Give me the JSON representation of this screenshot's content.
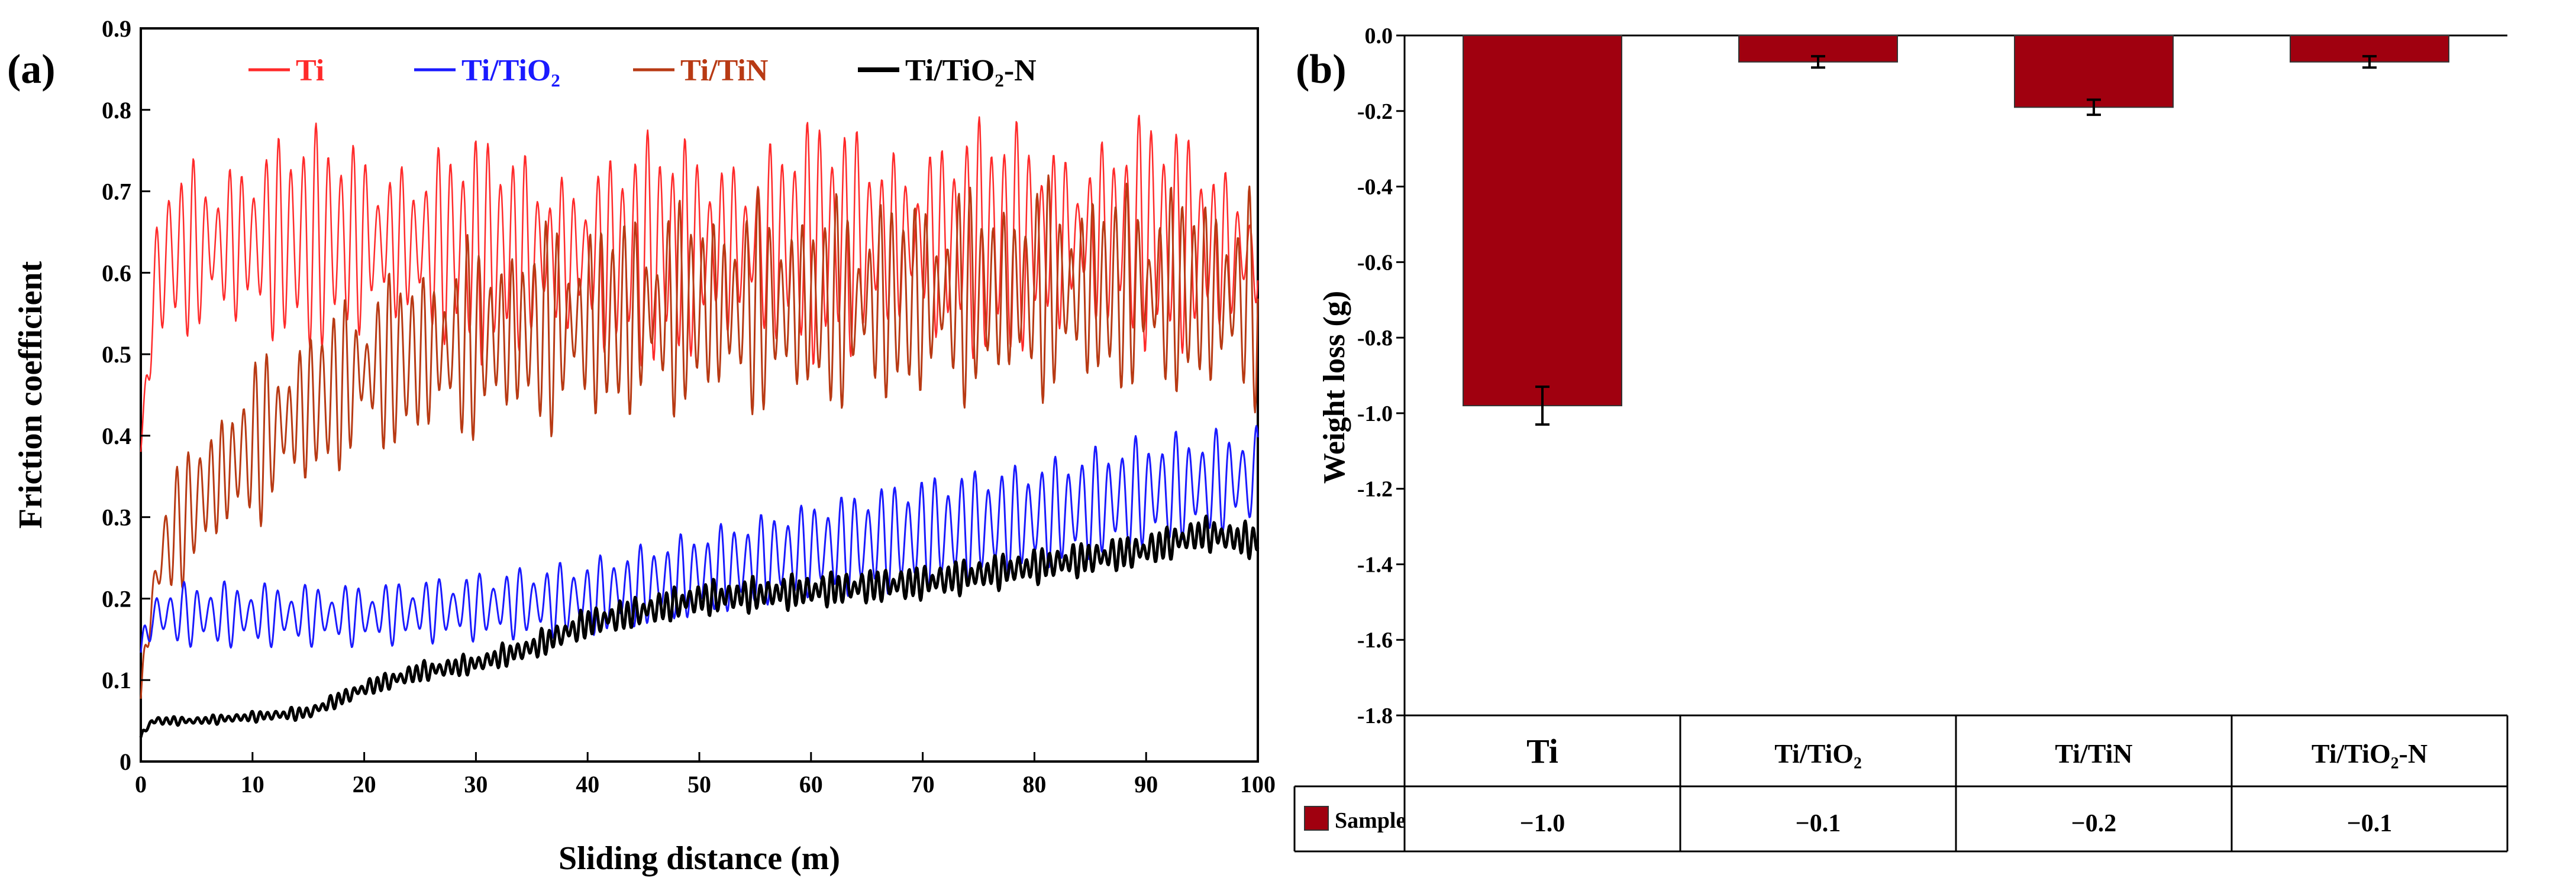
{
  "chart_data": [
    {
      "panel_label": "(a)",
      "type": "line",
      "title": "",
      "xlabel": "Sliding distance (m)",
      "ylabel": "Friction coefficient",
      "xlim": [
        0,
        100
      ],
      "ylim": [
        0,
        0.9
      ],
      "x_ticks": [
        "0",
        "10",
        "20",
        "30",
        "40",
        "50",
        "60",
        "70",
        "80",
        "90",
        "100"
      ],
      "y_ticks": [
        "0",
        "0.1",
        "0.2",
        "0.3",
        "0.4",
        "0.5",
        "0.6",
        "0.7",
        "0.8",
        "0.9"
      ],
      "legend_position": "top",
      "series": [
        {
          "name": "Ti",
          "color": "#ff2a2a",
          "x": [
            0,
            1,
            2,
            5,
            10,
            20,
            30,
            40,
            50,
            60,
            70,
            80,
            90,
            100
          ],
          "y_mean": [
            0.38,
            0.55,
            0.62,
            0.63,
            0.64,
            0.64,
            0.63,
            0.62,
            0.63,
            0.64,
            0.64,
            0.64,
            0.65,
            0.62
          ],
          "amplitude": [
            0,
            0.05,
            0.1,
            0.12,
            0.12,
            0.12,
            0.12,
            0.12,
            0.13,
            0.13,
            0.13,
            0.13,
            0.13,
            0.1
          ]
        },
        {
          "name": "Ti/TiO₂",
          "color": "#1a1aff",
          "x": [
            0,
            1,
            2,
            5,
            10,
            20,
            30,
            40,
            50,
            60,
            70,
            80,
            90,
            100
          ],
          "y_mean": [
            0.13,
            0.18,
            0.18,
            0.18,
            0.18,
            0.18,
            0.19,
            0.2,
            0.23,
            0.26,
            0.28,
            0.3,
            0.33,
            0.35
          ],
          "amplitude": [
            0.02,
            0.03,
            0.04,
            0.05,
            0.05,
            0.05,
            0.05,
            0.05,
            0.05,
            0.05,
            0.06,
            0.06,
            0.07,
            0.07
          ]
        },
        {
          "name": "Ti/TiN",
          "color": "#b83a14",
          "x": [
            0,
            1,
            2,
            5,
            10,
            20,
            30,
            40,
            50,
            60,
            70,
            80,
            90,
            100
          ],
          "y_mean": [
            0.08,
            0.2,
            0.26,
            0.32,
            0.39,
            0.48,
            0.52,
            0.54,
            0.56,
            0.56,
            0.57,
            0.58,
            0.58,
            0.57
          ],
          "amplitude": [
            0.02,
            0.05,
            0.06,
            0.08,
            0.09,
            0.1,
            0.11,
            0.12,
            0.12,
            0.12,
            0.12,
            0.12,
            0.12,
            0.12
          ]
        },
        {
          "name": "Ti/TiO₂-N",
          "color": "#000000",
          "x": [
            0,
            1,
            2,
            5,
            10,
            15,
            20,
            25,
            30,
            35,
            40,
            50,
            60,
            70,
            80,
            90,
            95,
            100
          ],
          "y_mean": [
            0.03,
            0.05,
            0.05,
            0.05,
            0.055,
            0.06,
            0.09,
            0.11,
            0.12,
            0.14,
            0.17,
            0.2,
            0.21,
            0.22,
            0.24,
            0.26,
            0.28,
            0.27
          ],
          "amplitude": [
            0.005,
            0.005,
            0.005,
            0.005,
            0.006,
            0.008,
            0.01,
            0.012,
            0.012,
            0.015,
            0.018,
            0.02,
            0.02,
            0.02,
            0.02,
            0.02,
            0.02,
            0.02
          ]
        }
      ],
      "legend": [
        "Ti",
        "Ti/TiO₂",
        "Ti/TiN",
        "Ti/TiO₂-N"
      ]
    },
    {
      "panel_label": "(b)",
      "type": "bar",
      "title": "",
      "xlabel": "",
      "ylabel": "Weight loss (g)",
      "ylim": [
        -1.8,
        0.0
      ],
      "y_ticks": [
        "0.0",
        "-0.2",
        "-0.4",
        "-0.6",
        "-0.8",
        "-1.0",
        "-1.2",
        "-1.4",
        "-1.6",
        "-1.8"
      ],
      "categories": [
        "Ti",
        "Ti/TiO₂",
        "Ti/TiN",
        "Ti/TiO₂-N"
      ],
      "series": [
        {
          "name": "Sample",
          "color": "#a0000f",
          "values": [
            -0.98,
            -0.07,
            -0.19,
            -0.07
          ],
          "error": [
            0.05,
            0.015,
            0.02,
            0.015
          ]
        }
      ],
      "table": {
        "row_label": "Sample",
        "values": [
          "−1.0",
          "−0.1",
          "−0.2",
          "−0.1"
        ]
      }
    }
  ]
}
